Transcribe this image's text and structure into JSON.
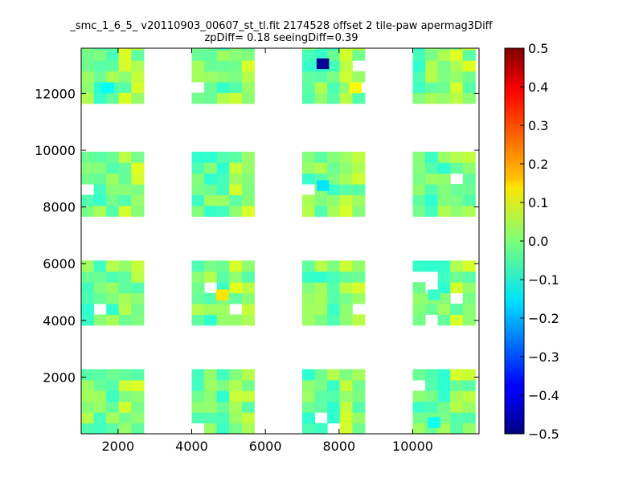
{
  "chart_data": {
    "type": "heatmap",
    "title": "_smc_1_6_5_ v20110903_00607_st_tl.fit 2174528 offset 2 tile-paw apermag3Diff",
    "subtitle": "zpDiff= 0.18 seeingDiff=0.39",
    "xlim": [
      1000,
      11800
    ],
    "ylim": [
      0,
      13600
    ],
    "x_ticks": [
      2000,
      4000,
      6000,
      8000,
      10000
    ],
    "y_ticks": [
      2000,
      4000,
      6000,
      8000,
      10000,
      12000
    ],
    "colorbar": {
      "colormap": "jet",
      "range": [
        -0.5,
        0.5
      ],
      "ticks": [
        0.5,
        0.4,
        0.3,
        0.2,
        0.1,
        0.0,
        -0.1,
        -0.2,
        -0.3,
        -0.4,
        -0.5
      ],
      "tick_labels": [
        "0.5",
        "0.4",
        "0.3",
        "0.2",
        "0.1",
        "0.0",
        "−0.1",
        "−0.2",
        "−0.3",
        "−0.4",
        "−0.5"
      ]
    },
    "cell_size": [
      340,
      380
    ],
    "columns": [
      {
        "x0": 1000,
        "y_blocks": [
          [
            0,
            2260
          ],
          [
            3830,
            6000
          ],
          [
            7670,
            9860
          ],
          [
            11650,
            13600
          ]
        ]
      },
      {
        "x0": 4000,
        "y_blocks": [
          [
            0,
            2260
          ],
          [
            3830,
            6000
          ],
          [
            7670,
            9860
          ],
          [
            11650,
            13600
          ]
        ]
      },
      {
        "x0": 7000,
        "y_blocks": [
          [
            0,
            2260
          ],
          [
            3830,
            6000
          ],
          [
            7670,
            9860
          ],
          [
            11650,
            13600
          ]
        ]
      },
      {
        "x0": 10000,
        "y_blocks": [
          [
            0,
            2260
          ],
          [
            3830,
            6000
          ],
          [
            7670,
            9860
          ],
          [
            11650,
            13600
          ]
        ]
      }
    ],
    "outlier_cells": [
      {
        "x": 7560,
        "y": 13050,
        "value": -0.48
      },
      {
        "x": 1720,
        "y": 12200,
        "value": -0.12
      },
      {
        "x": 8450,
        "y": 12200,
        "value": 0.13
      },
      {
        "x": 7560,
        "y": 8750,
        "value": -0.15
      },
      {
        "x": 4830,
        "y": 4900,
        "value": 0.15
      },
      {
        "x": 10580,
        "y": 4900,
        "value": -0.07
      },
      {
        "x": 10580,
        "y": 400,
        "value": -0.11
      }
    ],
    "typical_value_range": [
      -0.08,
      0.11
    ]
  }
}
